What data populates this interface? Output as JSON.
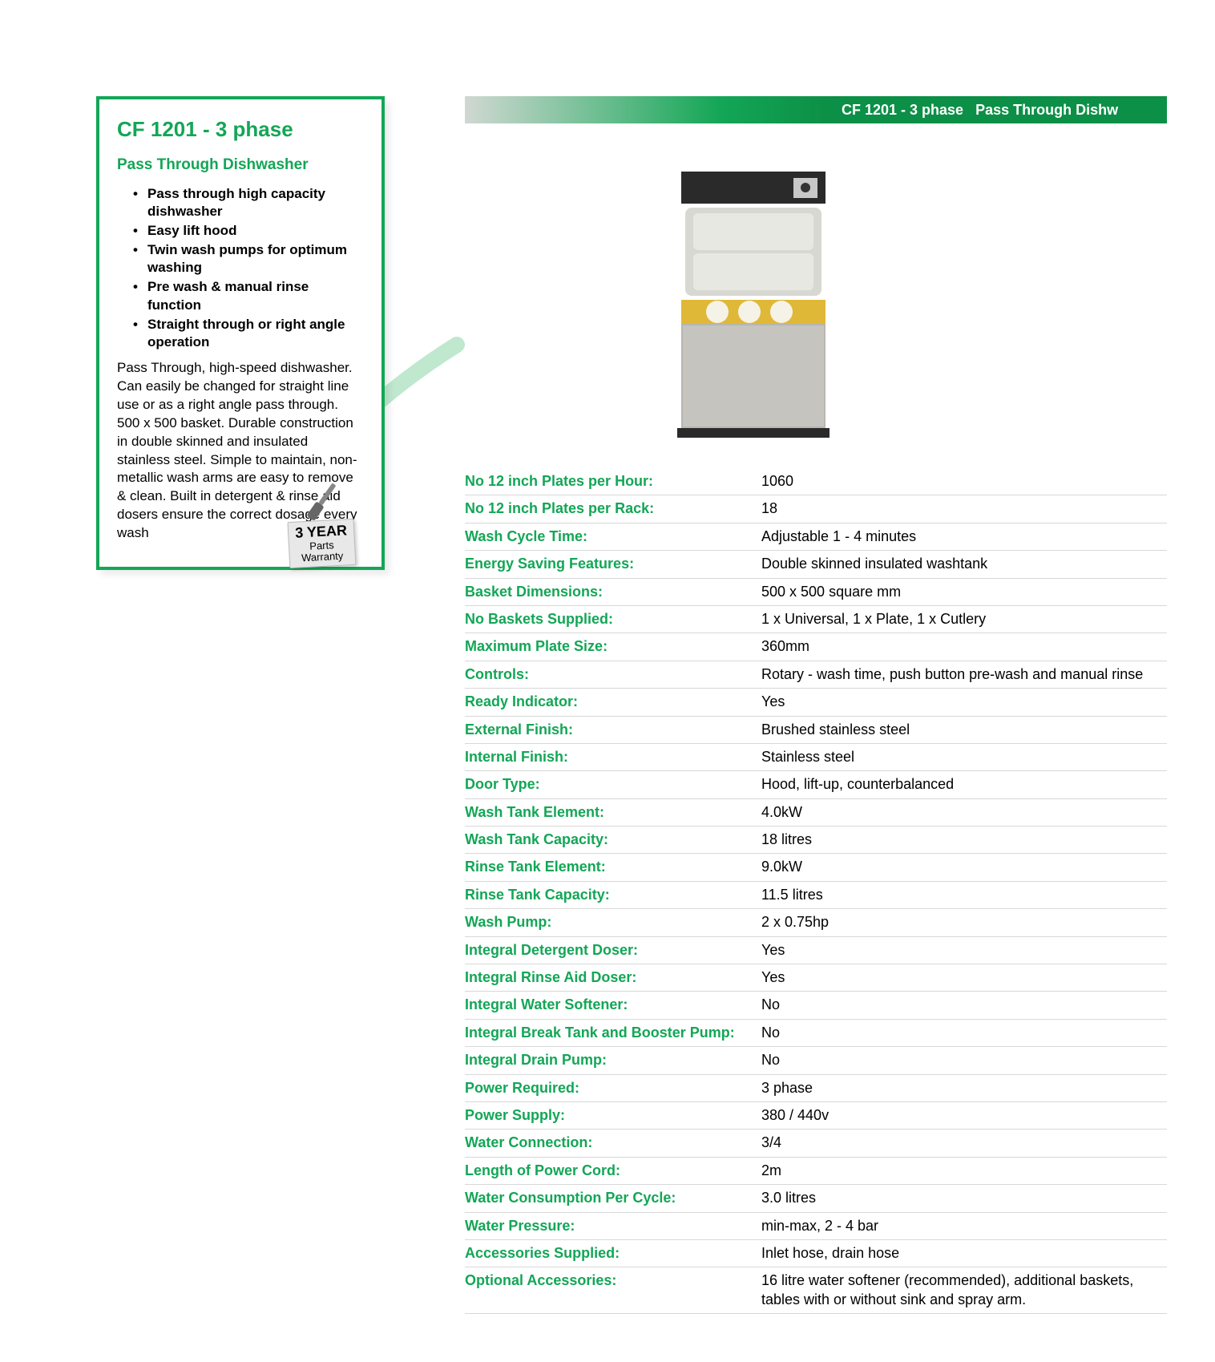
{
  "left": {
    "title": "CF 1201 - 3 phase",
    "subtitle": "Pass Through Dishwasher",
    "features": [
      "Pass through high capacity dishwasher",
      "Easy lift hood",
      "Twin wash pumps for optimum washing",
      "Pre wash & manual rinse function",
      "Straight through or right angle operation"
    ],
    "description": "Pass Through, high-speed dishwasher. Can easily be changed for straight line use or as a right angle pass through. 500 x 500 basket. Durable construction in double skinned and insulated stainless steel. Simple to maintain, non-metallic wash arms are easy to remove & clean. Built in detergent & rinse aid dosers ensure the correct dosage every wash"
  },
  "warranty": {
    "years": "3 YEAR",
    "line1": "Parts",
    "line2": "Warranty"
  },
  "header": {
    "model": "CF 1201 - 3 phase",
    "product": "Pass Through Dishw"
  },
  "specs": [
    {
      "label": "No 12 inch Plates per Hour:",
      "value": "1060"
    },
    {
      "label": "No 12 inch Plates per Rack:",
      "value": "18"
    },
    {
      "label": "Wash Cycle Time:",
      "value": "Adjustable 1 - 4 minutes"
    },
    {
      "label": "Energy Saving Features:",
      "value": "Double skinned insulated washtank"
    },
    {
      "label": "Basket Dimensions:",
      "value": "500 x 500 square mm"
    },
    {
      "label": "No Baskets Supplied:",
      "value": "1 x Universal, 1 x Plate, 1 x Cutlery"
    },
    {
      "label": "Maximum Plate Size:",
      "value": "360mm"
    },
    {
      "label": "Controls:",
      "value": "Rotary - wash time, push button pre-wash and manual rinse"
    },
    {
      "label": "Ready Indicator:",
      "value": "Yes"
    },
    {
      "label": "External Finish:",
      "value": "Brushed stainless steel"
    },
    {
      "label": "Internal Finish:",
      "value": "Stainless steel"
    },
    {
      "label": "Door Type:",
      "value": "Hood, lift-up, counterbalanced"
    },
    {
      "label": "Wash Tank Element:",
      "value": "4.0kW"
    },
    {
      "label": "Wash Tank Capacity:",
      "value": "18 litres"
    },
    {
      "label": "Rinse Tank Element:",
      "value": "9.0kW"
    },
    {
      "label": "Rinse Tank Capacity:",
      "value": "11.5 litres"
    },
    {
      "label": "Wash Pump:",
      "value": "2 x 0.75hp"
    },
    {
      "label": "Integral Detergent Doser:",
      "value": "Yes"
    },
    {
      "label": "Integral Rinse Aid Doser:",
      "value": "Yes"
    },
    {
      "label": "Integral Water Softener:",
      "value": "No"
    },
    {
      "label": "Integral Break Tank and Booster Pump:",
      "value": "No"
    },
    {
      "label": "Integral Drain Pump:",
      "value": "No"
    },
    {
      "label": "Power Required:",
      "value": "3 phase"
    },
    {
      "label": "Power Supply:",
      "value": "380 / 440v"
    },
    {
      "label": "Water Connection:",
      "value": "3/4"
    },
    {
      "label": "Length of Power Cord:",
      "value": "2m"
    },
    {
      "label": "Water Consumption Per Cycle:",
      "value": "3.0 litres"
    },
    {
      "label": "Water Pressure:",
      "value": "min-max, 2 - 4 bar"
    },
    {
      "label": "Accessories Supplied:",
      "value": "Inlet hose, drain hose"
    },
    {
      "label": "Optional Accessories:",
      "value": "16 litre water softener (recommended), additional baskets, tables with or without sink and spray arm."
    }
  ],
  "style": {
    "accent": "#13a656",
    "header_dark": "#0c8f46",
    "row_border": "#d8d8d8"
  }
}
